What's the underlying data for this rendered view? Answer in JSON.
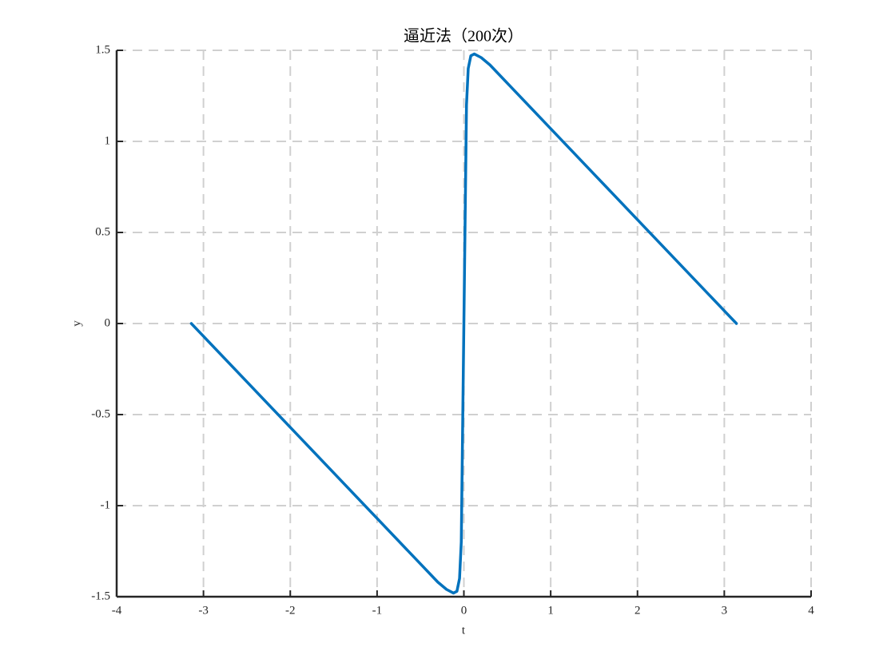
{
  "chart_data": {
    "type": "line",
    "title": "逼近法（200次）",
    "xlabel": "t",
    "ylabel": "y",
    "x": [
      -3.14,
      -3,
      -2.5,
      -2,
      -1.5,
      -1,
      -0.5,
      -0.3,
      -0.2,
      -0.12,
      -0.08,
      -0.05,
      -0.03,
      -0.02,
      0,
      0.02,
      0.03,
      0.05,
      0.08,
      0.12,
      0.2,
      0.3,
      0.5,
      1,
      1.5,
      2,
      2.5,
      3,
      3.14
    ],
    "series": [
      {
        "color": "#0072bd",
        "values": [
          0,
          -0.07,
          -0.32,
          -0.57,
          -0.82,
          -1.07,
          -1.32,
          -1.42,
          -1.46,
          -1.48,
          -1.47,
          -1.4,
          -1.2,
          -0.8,
          0,
          0.8,
          1.2,
          1.4,
          1.47,
          1.48,
          1.46,
          1.42,
          1.32,
          1.07,
          0.82,
          0.57,
          0.32,
          0.07,
          0
        ]
      }
    ],
    "xlim": [
      -4,
      4
    ],
    "ylim": [
      -1.5,
      1.5
    ],
    "xticks": [
      -4,
      -3,
      -2,
      -1,
      0,
      1,
      2,
      3,
      4
    ],
    "yticks": [
      -1.5,
      -1,
      -0.5,
      0,
      0.5,
      1,
      1.5
    ],
    "grid": true
  }
}
